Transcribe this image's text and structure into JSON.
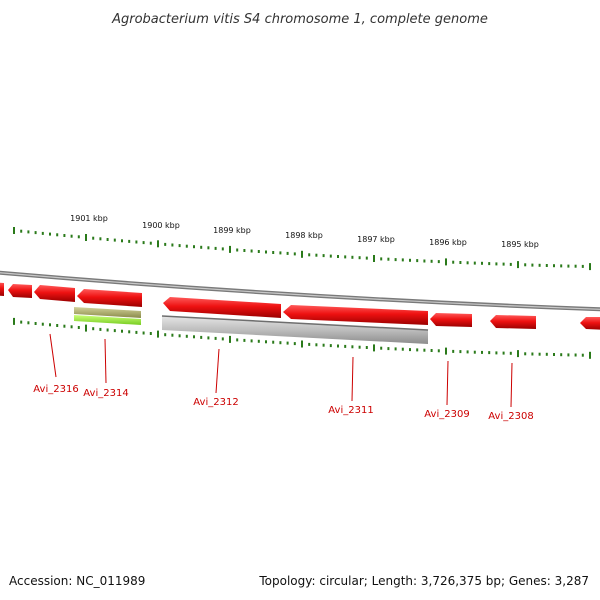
{
  "title": "Agrobacterium vitis S4 chromosome 1, complete genome",
  "scale": {
    "tick_labels": [
      "1901 kbp",
      "1900 kbp",
      "1899 kbp",
      "1898 kbp",
      "1897 kbp",
      "1896 kbp",
      "1895 kbp"
    ]
  },
  "genes": [
    {
      "label": "Avi_2316"
    },
    {
      "label": "Avi_2314"
    },
    {
      "label": "Avi_2312"
    },
    {
      "label": "Avi_2311"
    },
    {
      "label": "Avi_2309"
    },
    {
      "label": "Avi_2308"
    }
  ],
  "footer": {
    "accession": "Accession: NC_011989",
    "summary": "Topology: circular; Length: 3,726,375 bp; Genes: 3,287"
  },
  "colors": {
    "cds": "#ee1111",
    "gene_track": "#bbbbbb",
    "misc_feature": "#aaaa66",
    "rna": "#99ee33",
    "ticks": "#2a7a1a",
    "backbone": "#888888"
  }
}
